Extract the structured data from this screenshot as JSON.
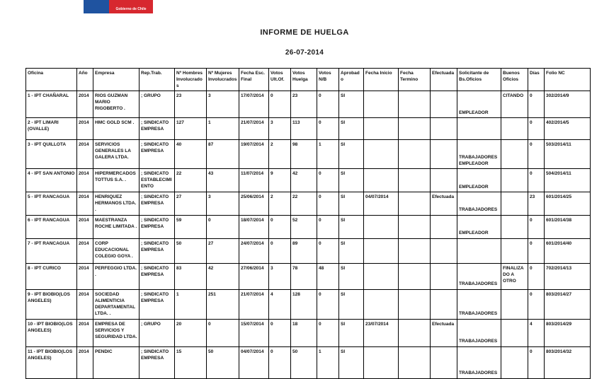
{
  "logo": {
    "text": "Gobierno de Chile",
    "blue_color": "#1F53A0",
    "red_color": "#D7282F"
  },
  "title": "INFORME DE HUELGA",
  "date": "26-07-2014",
  "table": {
    "columns": [
      "Oficina",
      "Año",
      "Empresa",
      "Rep.Trab.",
      "Nº Hombres Involucrados",
      "Nº Mujeres Involucrados",
      "Fecha Esc. Final",
      "Votos Ult.Of.",
      "Votos Huelga",
      "Votos N/B",
      "Aprobado",
      "Fecha Inicio",
      "Fecha Termino",
      "Efectuada",
      "Solicitante de Bs.Oficios",
      "Buenos Oficios",
      "Días",
      "Folio NC"
    ],
    "rows": [
      [
        "1 - IPT CHAÑARAL",
        "2014",
        "RIOS GUZMAN MARIO RIGOBERTO .",
        "; GRUPO",
        "23",
        "3",
        "17/07/2014",
        "0",
        "23",
        "0",
        "SI",
        "",
        "",
        "",
        "EMPLEADOR",
        "CITANDO",
        "0",
        "302/2014/9"
      ],
      [
        "2 - IPT LIMARI (OVALLE)",
        "2014",
        "HMC GOLD SCM .",
        "; SINDICATO EMPRESA",
        "127",
        "1",
        "21/07/2014",
        "3",
        "113",
        "0",
        "SI",
        "",
        "",
        "",
        "",
        "",
        "0",
        "402/2014/5"
      ],
      [
        "3 - IPT QUILLOTA",
        "2014",
        "SERVICIOS GENERALES LA GALERA LTDA.",
        "; SINDICATO EMPRESA",
        "40",
        "87",
        "19/07/2014",
        "2",
        "98",
        "1",
        "SI",
        "",
        "",
        "",
        "TRABAJADORES EMPLEADOR",
        "",
        "0",
        "503/2014/11"
      ],
      [
        "4 - IPT SAN ANTONIO",
        "2014",
        "HIPERMERCADOS TOTTUS S.A. .",
        "; SINDICATO ESTABLECIMIENTO",
        "22",
        "43",
        "11/07/2014",
        "9",
        "42",
        "0",
        "SI",
        "",
        "",
        "",
        "EMPLEADOR",
        "",
        "0",
        "504/2014/11"
      ],
      [
        "5 - IPT RANCAGUA",
        "2014",
        "HENRIQUEZ HERMANOS LTDA. .",
        "; SINDICATO EMPRESA",
        "27",
        "3",
        "25/06/2014",
        "2",
        "22",
        "0",
        "SI",
        "04/07/2014",
        "",
        "Efectuada",
        "TRABAJADORES",
        "",
        "23",
        "601/2014/25"
      ],
      [
        "6 - IPT RANCAGUA",
        "2014",
        "MAESTRANZA ROCHE LIMITADA .",
        "; SINDICATO EMPRESA",
        "59",
        "0",
        "18/07/2014",
        "0",
        "52",
        "0",
        "SI",
        "",
        "",
        "",
        "EMPLEADOR",
        "",
        "0",
        "601/2014/38"
      ],
      [
        "7 - IPT RANCAGUA",
        "2014",
        "CORP EDUCACIONAL COLEGIO GOYA .",
        "; SINDICATO EMPRESA",
        "50",
        "27",
        "24/07/2014",
        "0",
        "89",
        "0",
        "SI",
        "",
        "",
        "",
        "",
        "",
        "0",
        "601/2014/40"
      ],
      [
        "8 - IPT CURICO",
        "2014",
        "PERFEGGIO LTDA. .",
        "; SINDICATO EMPRESA",
        "83",
        "42",
        "27/06/2014",
        "3",
        "78",
        "48",
        "SI",
        "",
        "",
        "",
        "TRABAJADORES",
        "FINALIZADO A OTRO",
        "0",
        "702/2014/13"
      ],
      [
        "9 - IPT BIOBIO(LOS ANGELES)",
        "2014",
        "SOCIEDAD ALIMENTICIA DEPARTAMENTAL LTDA. .",
        "; SINDICATO EMPRESA",
        "1",
        "251",
        "21/07/2014",
        "4",
        "128",
        "0",
        "SI",
        "",
        "",
        "",
        "TRABAJADORES",
        "",
        "0",
        "803/2014/27"
      ],
      [
        "10 - IPT BIOBIO(LOS ANGELES)",
        "2014",
        "EMPRESA DE SERVICIOS Y SEGURIDAD LTDA.",
        "; GRUPO",
        "20",
        "0",
        "15/07/2014",
        "0",
        "18",
        "0",
        "SI",
        "23/07/2014",
        "",
        "Efectuada",
        "TRABAJADORES",
        "",
        "4",
        "803/2014/29"
      ],
      [
        "11 - IPT BIOBIO(LOS ANGELES)",
        "2014",
        "PENDIC",
        "; SINDICATO EMPRESA",
        "15",
        "50",
        "04/07/2014",
        "0",
        "50",
        "1",
        "SI",
        "",
        "",
        "",
        "TRABAJADORES",
        "",
        "0",
        "803/2014/32"
      ]
    ]
  }
}
